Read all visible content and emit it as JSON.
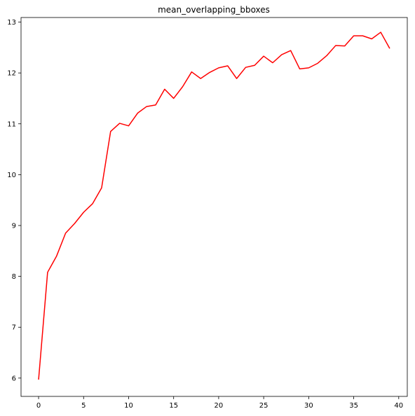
{
  "chart_data": {
    "type": "line",
    "title": "mean_overlapping_bboxes",
    "xlabel": "",
    "ylabel": "",
    "xlim": [
      -1.95,
      40.95
    ],
    "ylim": [
      5.64,
      13.09
    ],
    "xticks": [
      0,
      5,
      10,
      15,
      20,
      25,
      30,
      35,
      40
    ],
    "yticks": [
      6,
      7,
      8,
      9,
      10,
      11,
      12,
      13
    ],
    "grid": false,
    "series": [
      {
        "color": "#ff0000",
        "x": [
          0,
          1,
          2,
          3,
          4,
          5,
          6,
          7,
          8,
          9,
          10,
          11,
          12,
          13,
          14,
          15,
          16,
          17,
          18,
          19,
          20,
          21,
          22,
          23,
          24,
          25,
          26,
          27,
          28,
          29,
          30,
          31,
          32,
          33,
          34,
          35,
          36,
          37,
          38,
          39
        ],
        "y": [
          5.97,
          8.08,
          8.4,
          8.85,
          9.04,
          9.26,
          9.43,
          9.74,
          10.85,
          11.01,
          10.96,
          11.21,
          11.34,
          11.37,
          11.68,
          11.5,
          11.73,
          12.02,
          11.89,
          12.01,
          12.1,
          12.14,
          11.89,
          12.11,
          12.15,
          12.33,
          12.2,
          12.36,
          12.44,
          12.08,
          12.1,
          12.19,
          12.34,
          12.54,
          12.53,
          12.73,
          12.73,
          12.67,
          12.8,
          12.48
        ]
      }
    ]
  }
}
